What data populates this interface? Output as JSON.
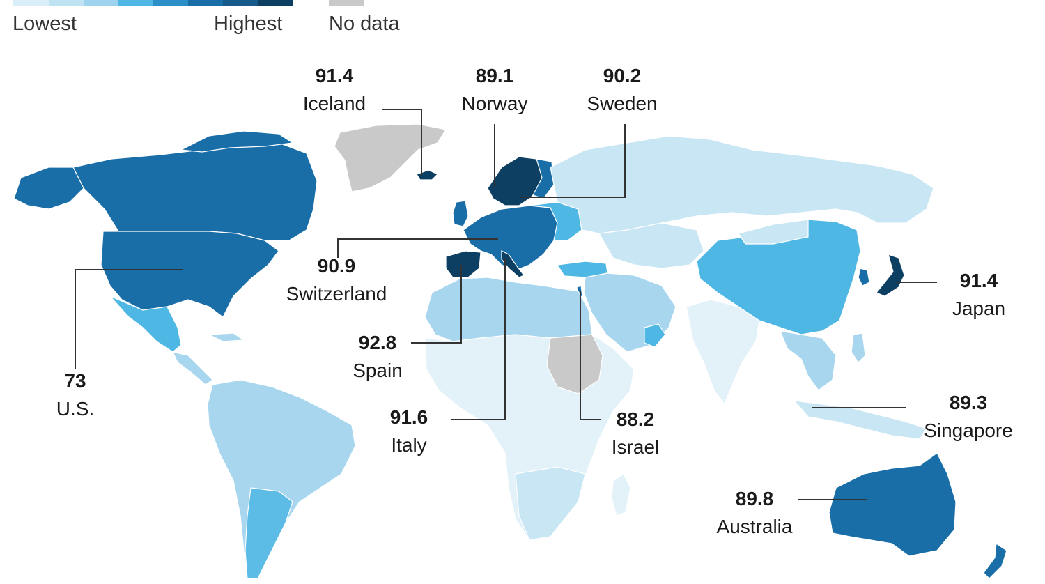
{
  "legend": {
    "low_label": "Lowest",
    "high_label": "Highest",
    "nodata_label": "No data",
    "scale_colors": [
      "#d9eef8",
      "#bfe3f3",
      "#9dd3ec",
      "#4fb7e3",
      "#2c8fc7",
      "#1a6ea8",
      "#0d3f63"
    ],
    "nodata_color": "#c9c9c9"
  },
  "colors": {
    "c1": "#e3f1f9",
    "c2": "#c9e6f4",
    "c3": "#a7d6ee",
    "c4": "#5cbce5",
    "c5": "#2e8fc6",
    "c6": "#1a6ea8",
    "c7": "#0d3f63",
    "nodata": "#c9c9c9"
  },
  "callouts": [
    {
      "id": "iceland",
      "value": "91.4",
      "name": "Iceland"
    },
    {
      "id": "norway",
      "value": "89.1",
      "name": "Norway"
    },
    {
      "id": "sweden",
      "value": "90.2",
      "name": "Sweden"
    },
    {
      "id": "switzerland",
      "value": "90.9",
      "name": "Switzerland"
    },
    {
      "id": "spain",
      "value": "92.8",
      "name": "Spain"
    },
    {
      "id": "italy",
      "value": "91.6",
      "name": "Italy"
    },
    {
      "id": "israel",
      "value": "88.2",
      "name": "Israel"
    },
    {
      "id": "japan",
      "value": "91.4",
      "name": "Japan"
    },
    {
      "id": "singapore",
      "value": "89.3",
      "name": "Singapore"
    },
    {
      "id": "australia",
      "value": "89.8",
      "name": "Australia"
    },
    {
      "id": "us",
      "value": "73",
      "name": "U.S."
    }
  ]
}
